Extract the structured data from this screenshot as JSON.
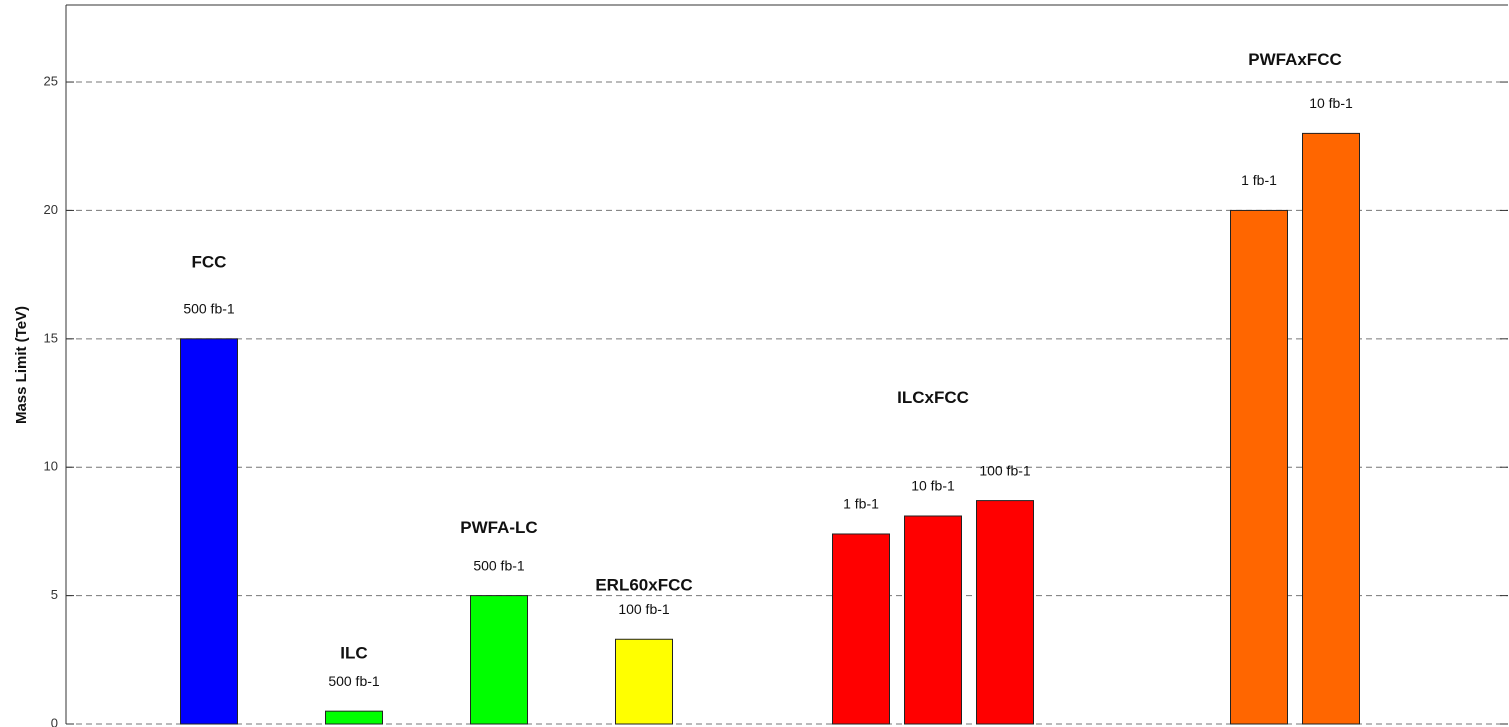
{
  "chart_data": {
    "type": "bar",
    "y_label": "Mass Limit (TeV)",
    "ylim": [
      0,
      28
    ],
    "yticks": [
      0,
      5,
      10,
      15,
      20,
      25
    ],
    "grid": true,
    "groups": [
      {
        "name": "FCC",
        "color": "#0000ff",
        "bars": [
          {
            "label": "500 fb-1",
            "value": 15
          }
        ]
      },
      {
        "name": "ILC",
        "color": "#00ff00",
        "bars": [
          {
            "label": "500 fb-1",
            "value": 0.5
          }
        ]
      },
      {
        "name": "PWFA-LC",
        "color": "#00ff00",
        "bars": [
          {
            "label": "500 fb-1",
            "value": 5
          }
        ]
      },
      {
        "name": "ERL60xFCC",
        "color": "#ffff00",
        "bars": [
          {
            "label": "100 fb-1",
            "value": 3.3
          }
        ]
      },
      {
        "name": "ILCxFCC",
        "color": "#ff0000",
        "bars": [
          {
            "label": "1 fb-1",
            "value": 7.4
          },
          {
            "label": "10 fb-1",
            "value": 8.1
          },
          {
            "label": "100 fb-1",
            "value": 8.7
          }
        ]
      },
      {
        "name": "PWFAxFCC",
        "color": "#ff6600",
        "bars": [
          {
            "label": "1 fb-1",
            "value": 20
          },
          {
            "label": "10 fb-1",
            "value": 23
          }
        ]
      }
    ]
  }
}
